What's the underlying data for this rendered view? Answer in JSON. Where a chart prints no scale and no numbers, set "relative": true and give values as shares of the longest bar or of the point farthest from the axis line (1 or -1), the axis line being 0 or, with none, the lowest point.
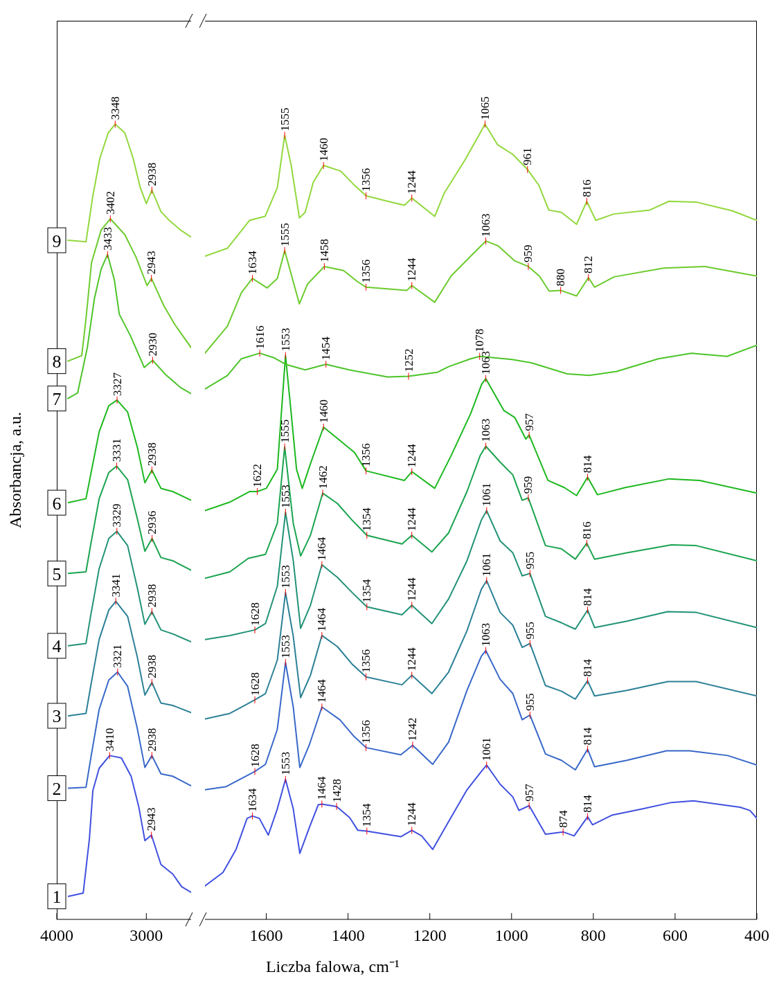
{
  "chart_data": [
    {
      "type": "line",
      "ylabel": "Absorbancja, a.u.",
      "relative": true,
      "tick_labels": "x",
      "xlim": [
        4000,
        2500
      ],
      "xticks": [
        4000,
        3000
      ],
      "series": [
        {
          "name": "1",
          "color": "#4050e0",
          "x": [
            3870,
            3705,
            3636,
            3597,
            3527,
            3410,
            3279,
            3170,
            3085,
            3016,
            2943,
            2837,
            2705,
            2605,
            2500
          ],
          "values": [
            0.029,
            0.033,
            0.101,
            0.162,
            0.19,
            0.206,
            0.203,
            0.18,
            0.142,
            0.099,
            0.106,
            0.069,
            0.057,
            0.041,
            0.034
          ]
        },
        {
          "name": "2",
          "color": "#3868c8",
          "x": [
            3870,
            3674,
            3620,
            3527,
            3419,
            3321,
            3209,
            3101,
            3016,
            2938,
            2837,
            2705,
            2500
          ],
          "values": [
            0.165,
            0.166,
            0.203,
            0.264,
            0.301,
            0.311,
            0.293,
            0.24,
            0.191,
            0.206,
            0.183,
            0.18,
            0.168
          ]
        },
        {
          "name": "3",
          "color": "#2b8096",
          "x": [
            3870,
            3674,
            3620,
            3527,
            3419,
            3341,
            3209,
            3101,
            3016,
            2938,
            2837,
            2705,
            2500
          ],
          "values": [
            0.256,
            0.259,
            0.294,
            0.352,
            0.389,
            0.4,
            0.381,
            0.33,
            0.282,
            0.298,
            0.272,
            0.269,
            0.26
          ]
        },
        {
          "name": "4",
          "color": "#219276",
          "x": [
            3870,
            3674,
            3620,
            3527,
            3419,
            3329,
            3209,
            3101,
            3016,
            2938,
            2837,
            2705,
            2500
          ],
          "values": [
            0.344,
            0.347,
            0.383,
            0.441,
            0.479,
            0.488,
            0.47,
            0.417,
            0.371,
            0.387,
            0.364,
            0.359,
            0.349
          ]
        },
        {
          "name": "5",
          "color": "#1aa34e",
          "x": [
            3870,
            3674,
            3620,
            3527,
            3419,
            3331,
            3209,
            3101,
            3016,
            2936,
            2837,
            2705,
            2500
          ],
          "values": [
            0.435,
            0.437,
            0.472,
            0.529,
            0.562,
            0.57,
            0.553,
            0.504,
            0.463,
            0.479,
            0.455,
            0.451,
            0.439
          ]
        },
        {
          "name": "6",
          "color": "#1cb81e",
          "x": [
            3870,
            3674,
            3620,
            3527,
            3419,
            3327,
            3209,
            3101,
            3016,
            2938,
            2837,
            2705,
            2500
          ],
          "values": [
            0.524,
            0.529,
            0.56,
            0.613,
            0.646,
            0.653,
            0.638,
            0.594,
            0.549,
            0.565,
            0.542,
            0.538,
            0.527
          ]
        },
        {
          "name": "7",
          "color": "#4cc428",
          "x": [
            3876,
            3767,
            3659,
            3581,
            3504,
            3433,
            3357,
            3302,
            3178,
            3023,
            2930,
            2775,
            2620,
            2500
          ],
          "values": [
            0.655,
            0.662,
            0.719,
            0.78,
            0.818,
            0.836,
            0.804,
            0.761,
            0.734,
            0.694,
            0.703,
            0.684,
            0.669,
            0.661
          ]
        },
        {
          "name": "8",
          "color": "#6ccb2c",
          "x": [
            3876,
            3721,
            3674,
            3612,
            3504,
            3402,
            3240,
            3116,
            2992,
            2943,
            2806,
            2682,
            2500
          ],
          "values": [
            0.702,
            0.709,
            0.755,
            0.826,
            0.867,
            0.881,
            0.861,
            0.833,
            0.797,
            0.806,
            0.772,
            0.748,
            0.719
          ]
        },
        {
          "name": "9",
          "color": "#92d83c",
          "x": [
            3876,
            3674,
            3597,
            3519,
            3426,
            3348,
            3240,
            3147,
            3070,
            3000,
            2938,
            2837,
            2744,
            2620,
            2500
          ],
          "values": [
            0.854,
            0.852,
            0.91,
            0.957,
            0.989,
            1,
            0.989,
            0.957,
            0.921,
            0.9,
            0.917,
            0.89,
            0.879,
            0.867,
            0.858
          ]
        }
      ],
      "annotations": [
        {
          "text": "3410",
          "x": 3410,
          "y": 0.206
        },
        {
          "text": "2943",
          "x": 2943,
          "y": 0.106
        },
        {
          "text": "3321",
          "x": 3321,
          "y": 0.311
        },
        {
          "text": "2938",
          "x": 2938,
          "y": 0.206
        },
        {
          "text": "3341",
          "x": 3341,
          "y": 0.4
        },
        {
          "text": "2938",
          "x": 2938,
          "y": 0.298
        },
        {
          "text": "3329",
          "x": 3329,
          "y": 0.488
        },
        {
          "text": "2938",
          "x": 2938,
          "y": 0.387
        },
        {
          "text": "3331",
          "x": 3331,
          "y": 0.57
        },
        {
          "text": "2936",
          "x": 2936,
          "y": 0.479
        },
        {
          "text": "3327",
          "x": 3327,
          "y": 0.653
        },
        {
          "text": "2938",
          "x": 2938,
          "y": 0.565
        },
        {
          "text": "3433",
          "x": 3433,
          "y": 0.836
        },
        {
          "text": "2930",
          "x": 2930,
          "y": 0.703
        },
        {
          "text": "3402",
          "x": 3402,
          "y": 0.881
        },
        {
          "text": "2943",
          "x": 2943,
          "y": 0.806
        },
        {
          "text": "3348",
          "x": 3348,
          "y": 1
        },
        {
          "text": "2938",
          "x": 2938,
          "y": 0.917
        }
      ]
    },
    {
      "type": "line",
      "xlabel": "Liczba falowa, cm⁻¹",
      "relative": true,
      "tick_labels": "x",
      "xlim": [
        1750,
        400
      ],
      "xticks": [
        1600,
        1400,
        1200,
        1000,
        800,
        600,
        400
      ],
      "series": [
        {
          "color": "#4050e0",
          "x": [
            1750,
            1706,
            1674,
            1647,
            1634,
            1617,
            1595,
            1573,
            1553,
            1534,
            1518,
            1495,
            1473,
            1464,
            1428,
            1396,
            1376,
            1354,
            1271,
            1244,
            1220,
            1193,
            1154,
            1109,
            1074,
            1061,
            1028,
            997,
            982,
            957,
            917,
            874,
            847,
            814,
            802,
            755,
            679,
            609,
            555,
            441,
            417,
            400
          ],
          "values": [
            0.042,
            0.059,
            0.088,
            0.127,
            0.13,
            0.127,
            0.106,
            0.139,
            0.176,
            0.139,
            0.083,
            0.115,
            0.144,
            0.145,
            0.142,
            0.128,
            0.112,
            0.111,
            0.104,
            0.112,
            0.105,
            0.088,
            0.123,
            0.163,
            0.186,
            0.194,
            0.17,
            0.154,
            0.137,
            0.143,
            0.107,
            0.11,
            0.105,
            0.129,
            0.119,
            0.131,
            0.139,
            0.147,
            0.149,
            0.141,
            0.137,
            0.127
          ]
        },
        {
          "color": "#3868c8",
          "x": [
            1750,
            1698,
            1628,
            1602,
            1573,
            1553,
            1534,
            1518,
            1495,
            1464,
            1420,
            1387,
            1356,
            1271,
            1242,
            1193,
            1154,
            1109,
            1074,
            1063,
            1028,
            997,
            974,
            955,
            917,
            878,
            844,
            814,
            797,
            718,
            621,
            564,
            471,
            400
          ],
          "values": [
            0.163,
            0.167,
            0.186,
            0.195,
            0.239,
            0.323,
            0.267,
            0.191,
            0.219,
            0.267,
            0.251,
            0.231,
            0.216,
            0.207,
            0.219,
            0.195,
            0.223,
            0.288,
            0.331,
            0.338,
            0.302,
            0.284,
            0.251,
            0.257,
            0.208,
            0.2,
            0.188,
            0.214,
            0.192,
            0.2,
            0.212,
            0.212,
            0.206,
            0.194
          ]
        },
        {
          "color": "#2b8096",
          "x": [
            1750,
            1689,
            1628,
            1602,
            1573,
            1553,
            1534,
            1516,
            1492,
            1464,
            1426,
            1390,
            1356,
            1268,
            1244,
            1195,
            1154,
            1109,
            1074,
            1061,
            1028,
            997,
            974,
            955,
            917,
            878,
            844,
            814,
            797,
            718,
            618,
            548,
            400
          ],
          "values": [
            0.252,
            0.259,
            0.276,
            0.284,
            0.326,
            0.411,
            0.356,
            0.279,
            0.307,
            0.357,
            0.343,
            0.321,
            0.305,
            0.295,
            0.307,
            0.284,
            0.311,
            0.363,
            0.415,
            0.426,
            0.386,
            0.37,
            0.342,
            0.347,
            0.294,
            0.287,
            0.277,
            0.3,
            0.281,
            0.288,
            0.299,
            0.299,
            0.281
          ]
        },
        {
          "color": "#219276",
          "x": [
            1750,
            1689,
            1628,
            1602,
            1573,
            1553,
            1534,
            1516,
            1492,
            1464,
            1426,
            1390,
            1354,
            1268,
            1244,
            1195,
            1154,
            1109,
            1074,
            1061,
            1028,
            997,
            974,
            955,
            917,
            878,
            844,
            814,
            797,
            718,
            618,
            548,
            400
          ],
          "values": [
            0.352,
            0.357,
            0.364,
            0.372,
            0.419,
            0.512,
            0.451,
            0.366,
            0.395,
            0.446,
            0.43,
            0.411,
            0.393,
            0.383,
            0.395,
            0.372,
            0.403,
            0.451,
            0.502,
            0.514,
            0.476,
            0.461,
            0.432,
            0.435,
            0.381,
            0.373,
            0.365,
            0.389,
            0.367,
            0.375,
            0.387,
            0.386,
            0.367
          ]
        },
        {
          "color": "#1aa34e",
          "x": [
            1750,
            1689,
            1644,
            1602,
            1573,
            1555,
            1534,
            1516,
            1492,
            1462,
            1426,
            1390,
            1354,
            1268,
            1244,
            1195,
            1154,
            1109,
            1077,
            1063,
            1028,
            997,
            974,
            959,
            917,
            878,
            844,
            816,
            797,
            718,
            609,
            548,
            400
          ],
          "values": [
            0.429,
            0.437,
            0.454,
            0.459,
            0.498,
            0.594,
            0.498,
            0.457,
            0.483,
            0.536,
            0.523,
            0.502,
            0.483,
            0.472,
            0.483,
            0.462,
            0.486,
            0.538,
            0.583,
            0.595,
            0.575,
            0.559,
            0.527,
            0.53,
            0.47,
            0.466,
            0.453,
            0.473,
            0.453,
            0.461,
            0.471,
            0.47,
            0.451
          ]
        },
        {
          "color": "#1cb81e",
          "x": [
            1750,
            1688,
            1641,
            1622,
            1600,
            1573,
            1553,
            1539,
            1526,
            1512,
            1492,
            1460,
            1424,
            1384,
            1356,
            1262,
            1244,
            1188,
            1148,
            1100,
            1073,
            1063,
            1019,
            992,
            965,
            957,
            911,
            871,
            841,
            814,
            790,
            722,
            614,
            540,
            400
          ],
          "values": [
            0.514,
            0.525,
            0.538,
            0.538,
            0.542,
            0.566,
            0.709,
            0.636,
            0.566,
            0.542,
            0.573,
            0.619,
            0.604,
            0.587,
            0.564,
            0.552,
            0.563,
            0.542,
            0.583,
            0.636,
            0.673,
            0.68,
            0.64,
            0.631,
            0.604,
            0.609,
            0.552,
            0.543,
            0.533,
            0.556,
            0.534,
            0.543,
            0.554,
            0.552,
            0.536
          ]
        },
        {
          "color": "#4cc428",
          "x": [
            1750,
            1695,
            1661,
            1616,
            1580,
            1553,
            1505,
            1454,
            1397,
            1303,
            1252,
            1181,
            1154,
            1100,
            1078,
            999,
            952,
            864,
            810,
            743,
            641,
            560,
            473,
            400
          ],
          "values": [
            0.667,
            0.684,
            0.705,
            0.712,
            0.706,
            0.698,
            0.691,
            0.698,
            0.691,
            0.682,
            0.683,
            0.688,
            0.695,
            0.705,
            0.708,
            0.704,
            0.7,
            0.686,
            0.684,
            0.689,
            0.705,
            0.712,
            0.708,
            0.722
          ]
        },
        {
          "color": "#6ccb2c",
          "x": [
            1750,
            1695,
            1661,
            1634,
            1598,
            1573,
            1555,
            1519,
            1499,
            1458,
            1411,
            1377,
            1356,
            1256,
            1244,
            1188,
            1148,
            1100,
            1063,
            1033,
            992,
            959,
            932,
            908,
            880,
            841,
            812,
            797,
            749,
            628,
            527,
            400
          ],
          "values": [
            0.712,
            0.746,
            0.788,
            0.806,
            0.794,
            0.806,
            0.841,
            0.774,
            0.799,
            0.821,
            0.816,
            0.802,
            0.795,
            0.791,
            0.797,
            0.776,
            0.809,
            0.834,
            0.853,
            0.847,
            0.828,
            0.821,
            0.809,
            0.79,
            0.791,
            0.784,
            0.807,
            0.795,
            0.808,
            0.819,
            0.821,
            0.809
          ]
        },
        {
          "color": "#92d83c",
          "x": [
            1750,
            1695,
            1641,
            1603,
            1573,
            1555,
            1539,
            1519,
            1505,
            1485,
            1460,
            1418,
            1384,
            1356,
            1303,
            1262,
            1244,
            1188,
            1165,
            1114,
            1080,
            1065,
            1034,
            997,
            961,
            933,
            909,
            878,
            841,
            816,
            794,
            750,
            662,
            615,
            548,
            460,
            400
          ],
          "values": [
            0.834,
            0.844,
            0.879,
            0.884,
            0.92,
            0.986,
            0.948,
            0.882,
            0.889,
            0.927,
            0.948,
            0.941,
            0.923,
            0.91,
            0.903,
            0.898,
            0.907,
            0.884,
            0.913,
            0.955,
            0.986,
            1,
            0.974,
            0.962,
            0.943,
            0.923,
            0.892,
            0.889,
            0.874,
            0.903,
            0.879,
            0.887,
            0.892,
            0.903,
            0.902,
            0.891,
            0.879
          ]
        }
      ],
      "annotations": [
        {
          "text": "1634",
          "x": 1634,
          "y": 0.13
        },
        {
          "text": "1553",
          "x": 1553,
          "y": 0.176
        },
        {
          "text": "1464",
          "x": 1464,
          "y": 0.145
        },
        {
          "text": "1428",
          "x": 1428,
          "y": 0.142
        },
        {
          "text": "1354",
          "x": 1354,
          "y": 0.111
        },
        {
          "text": "1244",
          "x": 1244,
          "y": 0.112
        },
        {
          "text": "1061",
          "x": 1061,
          "y": 0.194
        },
        {
          "text": "957",
          "x": 957,
          "y": 0.143
        },
        {
          "text": "874",
          "x": 874,
          "y": 0.11
        },
        {
          "text": "814",
          "x": 814,
          "y": 0.129
        },
        {
          "text": "1628",
          "x": 1628,
          "y": 0.186
        },
        {
          "text": "1553",
          "x": 1553,
          "y": 0.323
        },
        {
          "text": "1464",
          "x": 1464,
          "y": 0.267
        },
        {
          "text": "1356",
          "x": 1356,
          "y": 0.216
        },
        {
          "text": "1242",
          "x": 1242,
          "y": 0.219
        },
        {
          "text": "1063",
          "x": 1063,
          "y": 0.338
        },
        {
          "text": "955",
          "x": 955,
          "y": 0.257
        },
        {
          "text": "814",
          "x": 814,
          "y": 0.214
        },
        {
          "text": "1628",
          "x": 1628,
          "y": 0.276
        },
        {
          "text": "1553",
          "x": 1553,
          "y": 0.411
        },
        {
          "text": "1464",
          "x": 1464,
          "y": 0.357
        },
        {
          "text": "1356",
          "x": 1356,
          "y": 0.305
        },
        {
          "text": "1244",
          "x": 1244,
          "y": 0.307
        },
        {
          "text": "1061",
          "x": 1061,
          "y": 0.426
        },
        {
          "text": "955",
          "x": 955,
          "y": 0.347
        },
        {
          "text": "814",
          "x": 814,
          "y": 0.3
        },
        {
          "text": "1628",
          "x": 1628,
          "y": 0.364
        },
        {
          "text": "1553",
          "x": 1553,
          "y": 0.512
        },
        {
          "text": "1464",
          "x": 1464,
          "y": 0.446
        },
        {
          "text": "1354",
          "x": 1354,
          "y": 0.393
        },
        {
          "text": "1244",
          "x": 1244,
          "y": 0.395
        },
        {
          "text": "1061",
          "x": 1061,
          "y": 0.514
        },
        {
          "text": "955",
          "x": 955,
          "y": 0.435
        },
        {
          "text": "814",
          "x": 814,
          "y": 0.389
        },
        {
          "text": "1555",
          "x": 1555,
          "y": 0.594
        },
        {
          "text": "1462",
          "x": 1462,
          "y": 0.536
        },
        {
          "text": "1354",
          "x": 1354,
          "y": 0.483
        },
        {
          "text": "1244",
          "x": 1244,
          "y": 0.483
        },
        {
          "text": "1063",
          "x": 1063,
          "y": 0.595
        },
        {
          "text": "959",
          "x": 959,
          "y": 0.53
        },
        {
          "text": "816",
          "x": 816,
          "y": 0.473
        },
        {
          "text": "1622",
          "x": 1622,
          "y": 0.538
        },
        {
          "text": "1553",
          "x": 1553,
          "y": 0.709
        },
        {
          "text": "1460",
          "x": 1460,
          "y": 0.619
        },
        {
          "text": "1356",
          "x": 1356,
          "y": 0.564
        },
        {
          "text": "1244",
          "x": 1244,
          "y": 0.563
        },
        {
          "text": "1063",
          "x": 1063,
          "y": 0.68
        },
        {
          "text": "957",
          "x": 957,
          "y": 0.609
        },
        {
          "text": "814",
          "x": 814,
          "y": 0.556
        },
        {
          "text": "1616",
          "x": 1616,
          "y": 0.712
        },
        {
          "text": "1454",
          "x": 1454,
          "y": 0.698
        },
        {
          "text": "1252",
          "x": 1252,
          "y": 0.683
        },
        {
          "text": "1078",
          "x": 1078,
          "y": 0.708
        },
        {
          "text": "1634",
          "x": 1634,
          "y": 0.806
        },
        {
          "text": "1555",
          "x": 1555,
          "y": 0.841
        },
        {
          "text": "1458",
          "x": 1458,
          "y": 0.821
        },
        {
          "text": "1356",
          "x": 1356,
          "y": 0.795
        },
        {
          "text": "1244",
          "x": 1244,
          "y": 0.797
        },
        {
          "text": "1063",
          "x": 1063,
          "y": 0.853
        },
        {
          "text": "959",
          "x": 959,
          "y": 0.821
        },
        {
          "text": "880",
          "x": 880,
          "y": 0.791
        },
        {
          "text": "812",
          "x": 812,
          "y": 0.807
        },
        {
          "text": "1555",
          "x": 1555,
          "y": 0.986
        },
        {
          "text": "1460",
          "x": 1460,
          "y": 0.948
        },
        {
          "text": "1356",
          "x": 1356,
          "y": 0.91
        },
        {
          "text": "1244",
          "x": 1244,
          "y": 0.907
        },
        {
          "text": "1065",
          "x": 1065,
          "y": 1
        },
        {
          "text": "961",
          "x": 961,
          "y": 0.943
        },
        {
          "text": "816",
          "x": 816,
          "y": 0.903
        }
      ]
    }
  ]
}
